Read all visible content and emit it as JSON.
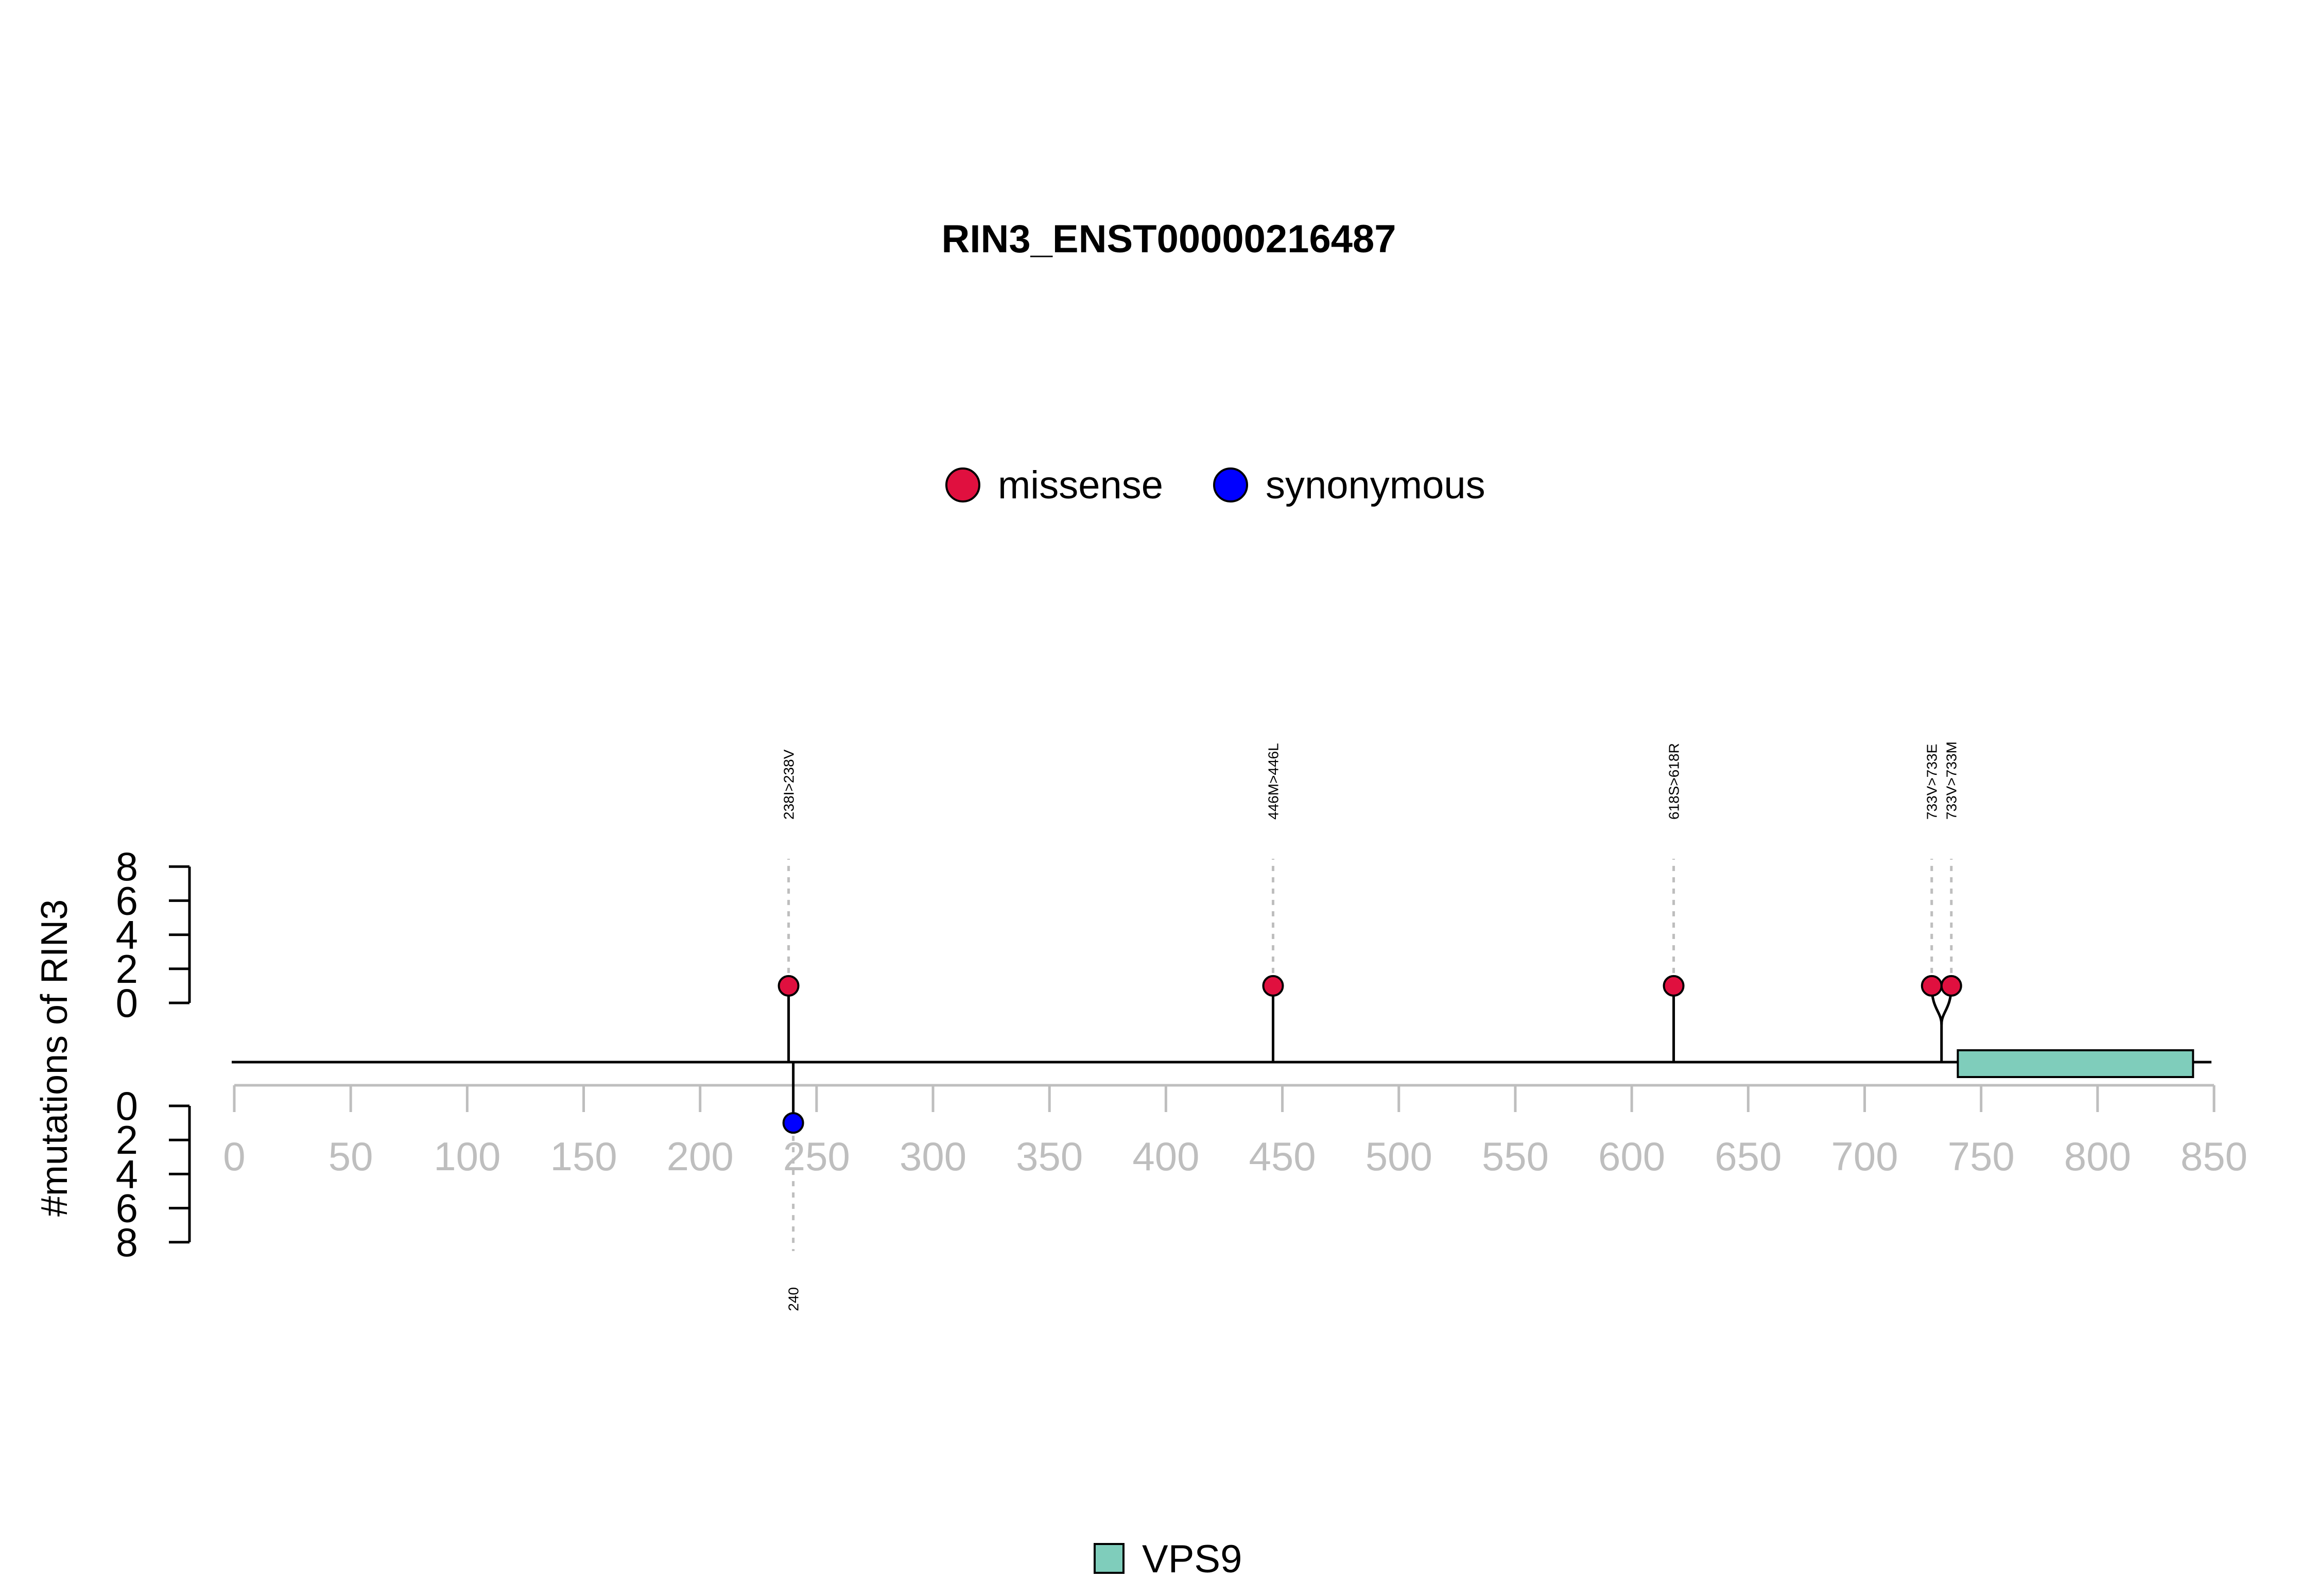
{
  "chart_data": {
    "type": "lollipop",
    "title": "RIN3_ENST00000216487",
    "ylabel": "#mutations of RIN3",
    "xlim": [
      0,
      850
    ],
    "x_ticks": [
      0,
      50,
      100,
      150,
      200,
      250,
      300,
      350,
      400,
      450,
      500,
      550,
      600,
      650,
      700,
      750,
      800,
      850
    ],
    "y_ticks_top": [
      0,
      2,
      4,
      6,
      8
    ],
    "y_ticks_bottom": [
      0,
      2,
      4,
      6,
      8
    ],
    "legend_top": [
      {
        "name": "missense",
        "color": "#E0103F"
      },
      {
        "name": "synonymous",
        "color": "#0000FF"
      }
    ],
    "top_mutations": [
      {
        "position": 238,
        "count": 1,
        "type": "missense",
        "label": "238I>238V"
      },
      {
        "position": 446,
        "count": 1,
        "type": "missense",
        "label": "446M>446L"
      },
      {
        "position": 618,
        "count": 1,
        "type": "missense",
        "label": "618S>618R"
      },
      {
        "position": 733,
        "count": 1,
        "type": "missense",
        "label": "733V>733E"
      },
      {
        "position": 733,
        "count": 1,
        "type": "missense",
        "label": "733V>733M"
      }
    ],
    "bottom_mutations": [
      {
        "position": 240,
        "count": 1,
        "type": "synonymous",
        "label": "240"
      }
    ],
    "domains": [
      {
        "name": "VPS9",
        "start": 740,
        "end": 841,
        "color": "#7FCDBB"
      }
    ],
    "legend_bottom": [
      {
        "name": "VPS9",
        "color": "#7FCDBB"
      }
    ]
  }
}
